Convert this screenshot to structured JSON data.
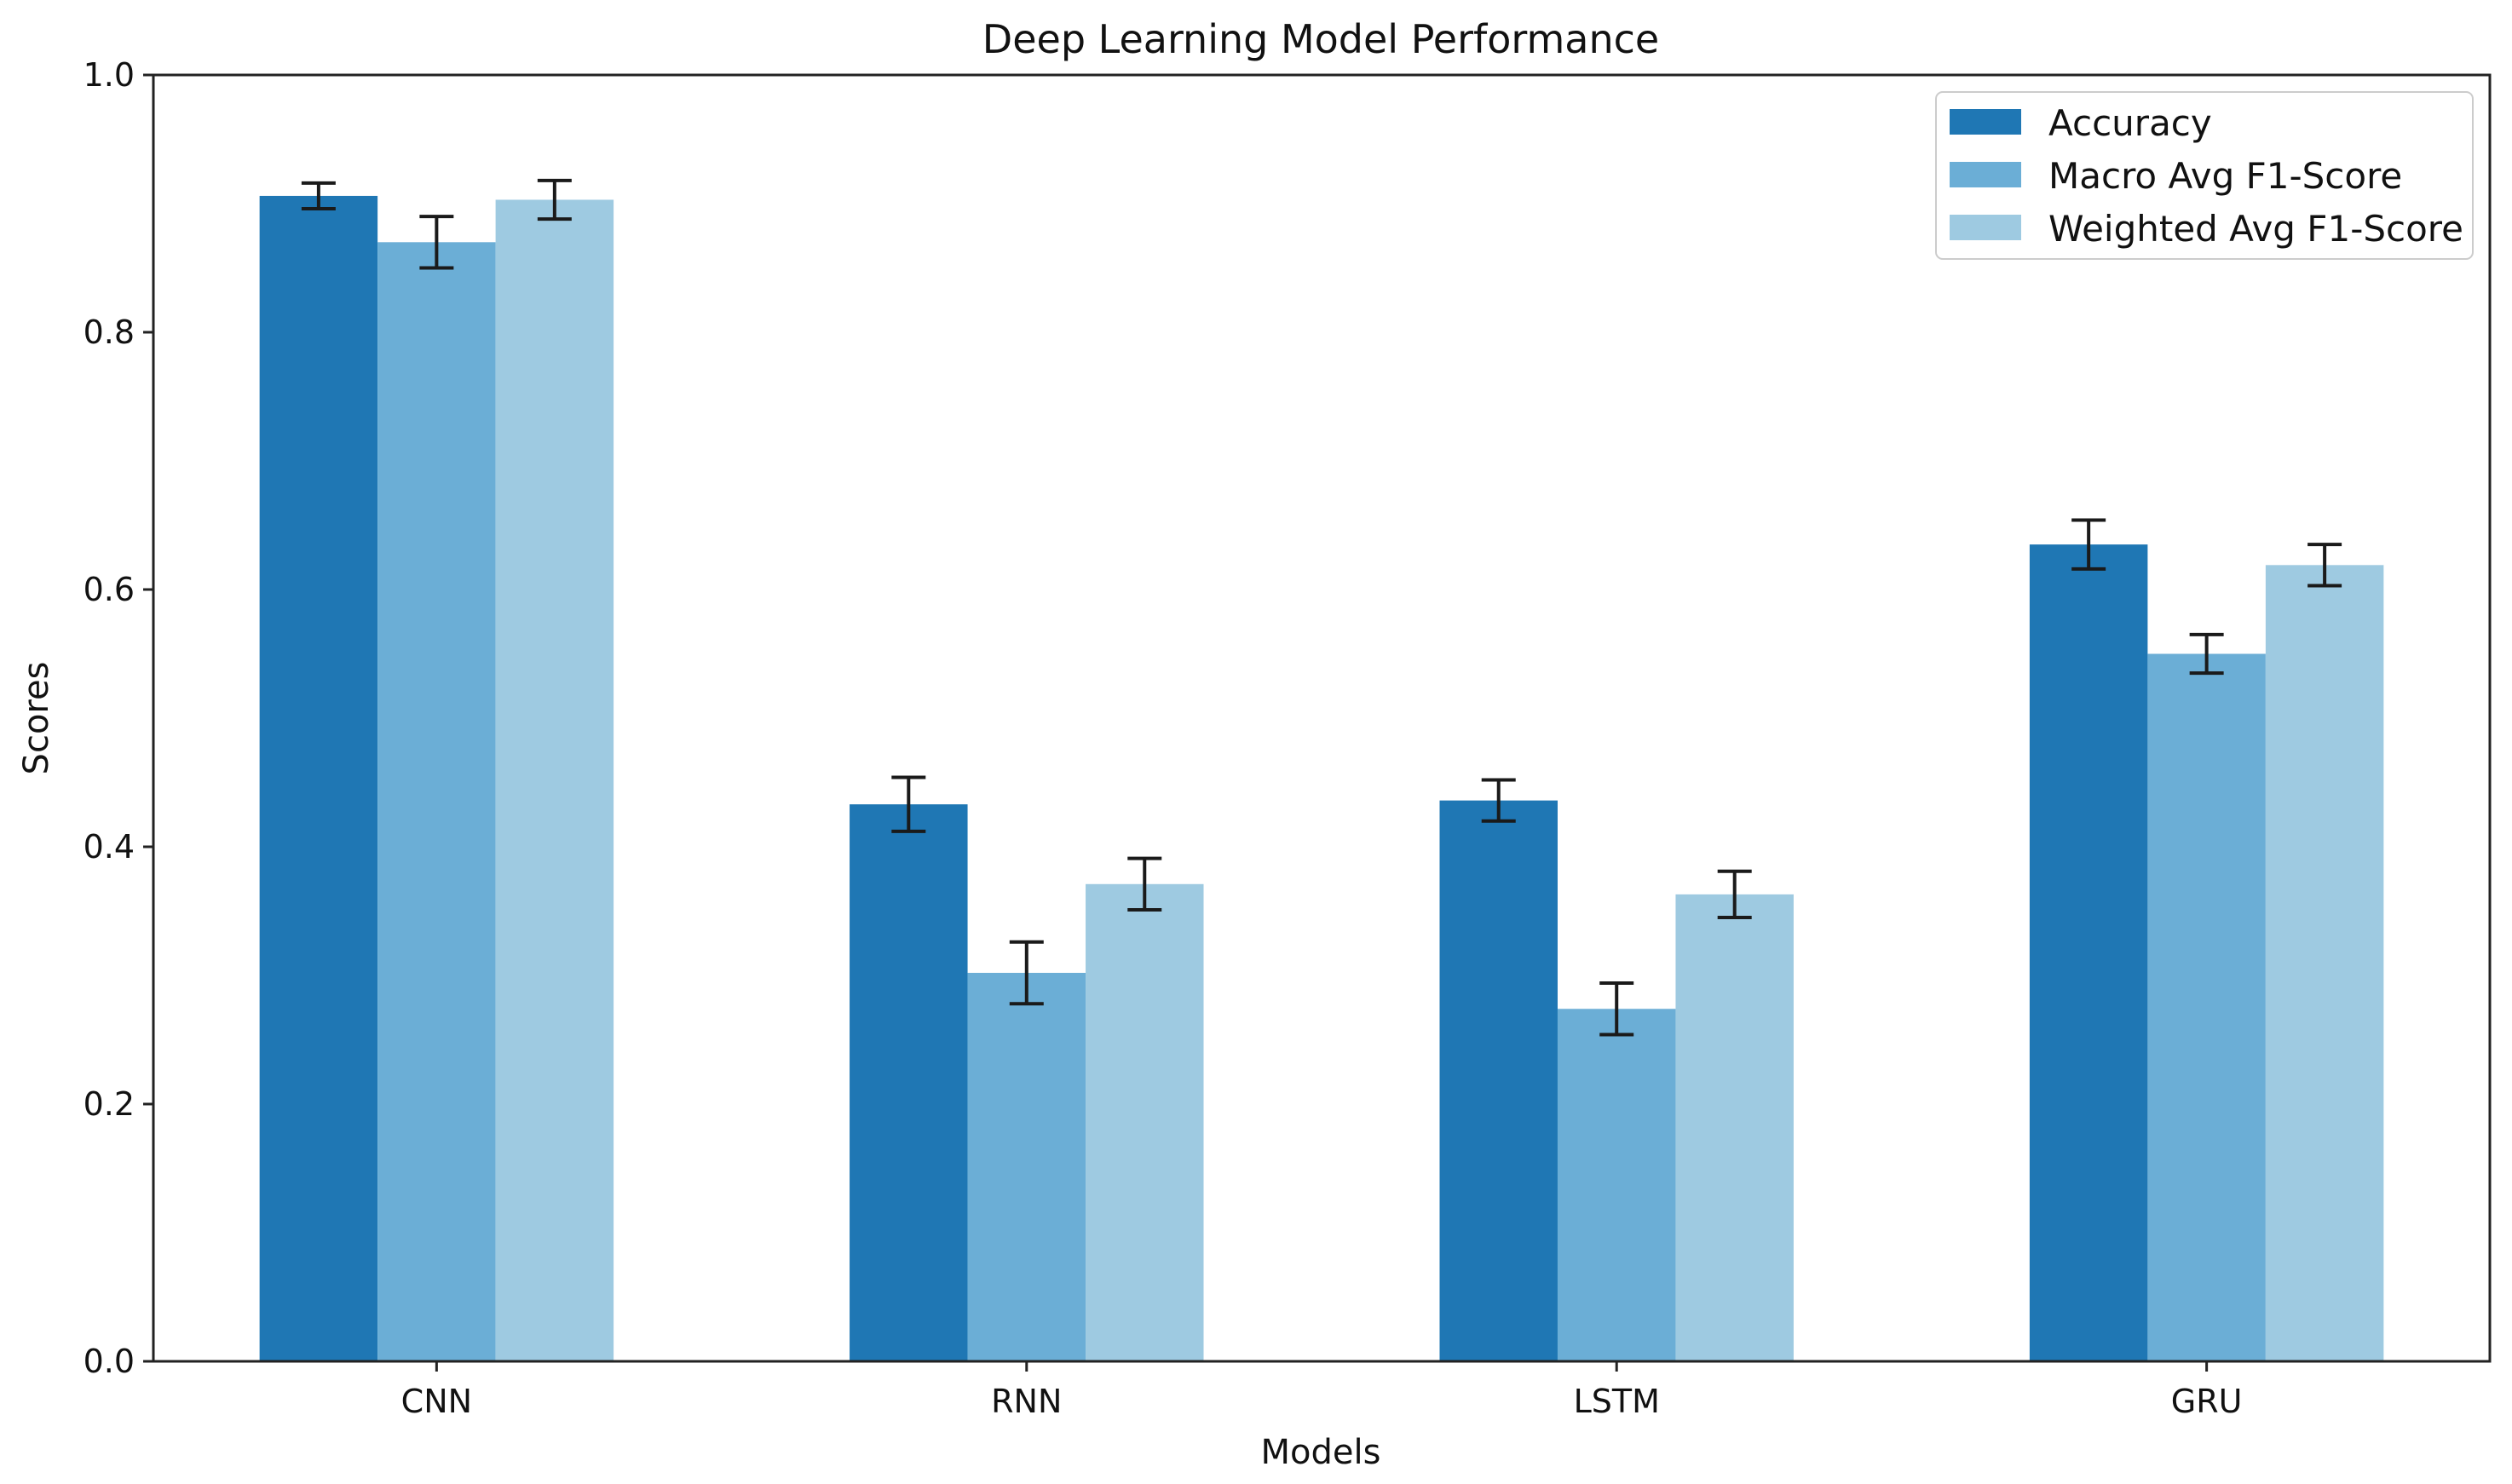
{
  "chart_data": {
    "type": "bar",
    "title": "Deep Learning Model Performance",
    "xlabel": "Models",
    "ylabel": "Scores",
    "ylim": [
      0,
      1.0
    ],
    "yticks": [
      "0.0",
      "0.2",
      "0.4",
      "0.6",
      "0.8",
      "1.0"
    ],
    "categories": [
      "CNN",
      "RNN",
      "LSTM",
      "GRU"
    ],
    "grid": false,
    "legend_position": "top-right",
    "series": [
      {
        "name": "Accuracy",
        "color": "#1f77b4",
        "values": [
          0.906,
          0.433,
          0.436,
          0.635
        ],
        "errors": [
          0.01,
          0.021,
          0.016,
          0.019
        ]
      },
      {
        "name": "Macro Avg F1-Score",
        "color": "#6baed6",
        "values": [
          0.87,
          0.302,
          0.274,
          0.55
        ],
        "errors": [
          0.02,
          0.024,
          0.02,
          0.015
        ]
      },
      {
        "name": "Weighted Avg F1-Score",
        "color": "#9ecae1",
        "values": [
          0.903,
          0.371,
          0.363,
          0.619
        ],
        "errors": [
          0.015,
          0.02,
          0.018,
          0.016
        ]
      }
    ]
  }
}
